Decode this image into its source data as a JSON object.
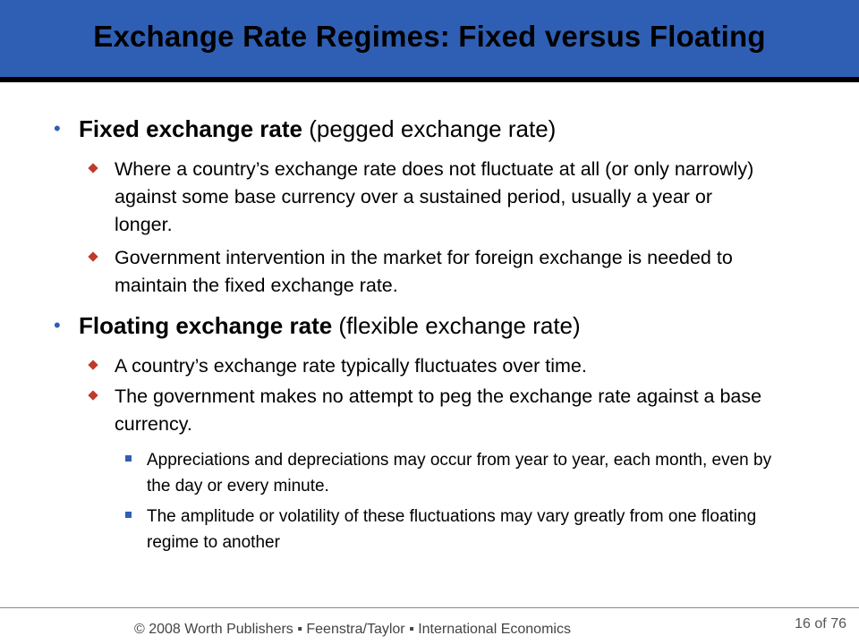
{
  "slide": {
    "title": "Exchange Rate Regimes: Fixed versus Floating",
    "bullets": [
      {
        "bold": "Fixed exchange rate",
        "rest": " (pegged exchange rate)",
        "subs": [
          {
            "text": "Where a country’s exchange rate does not fluctuate at all (or only narrowly) against some base currency over a sustained period, usually a year or longer."
          },
          {
            "text": "Government intervention in the market for foreign exchange is needed to maintain the fixed exchange rate."
          }
        ]
      },
      {
        "bold": "Floating exchange rate",
        "rest": " (flexible exchange rate)",
        "subs": [
          {
            "text": "A country’s exchange rate typically fluctuates over time."
          },
          {
            "text": "The government makes no attempt to peg the exchange rate against a base currency."
          }
        ],
        "subsubs": [
          {
            "text": "Appreciations and depreciations may occur from year to year, each month, even by the day or every minute."
          },
          {
            "text": "The amplitude or volatility of these fluctuations may vary greatly from one floating regime to another"
          }
        ]
      }
    ]
  },
  "footer": {
    "text": "© 2008 Worth Publishers ▪ Feenstra/Taylor ▪ International Economics",
    "page_current": "16",
    "page_of": "of",
    "page_total": "76"
  },
  "colors": {
    "title_bar": "#2f5fb5",
    "diamond_bullet": "#c0392b",
    "square_bullet": "#2f5fb5"
  }
}
